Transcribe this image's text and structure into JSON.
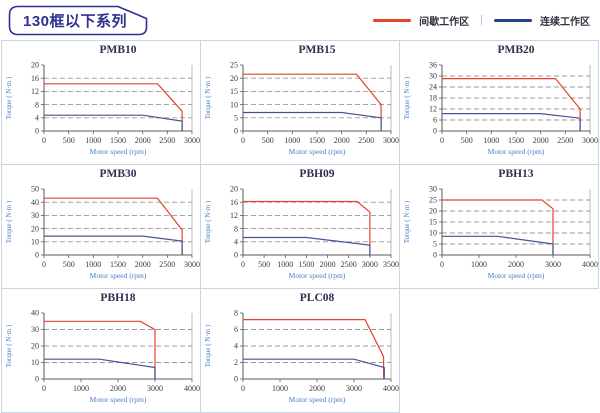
{
  "header": {
    "title": "130框以下系列",
    "legend_separator": "|",
    "legend": [
      {
        "key": "intermittent-zone",
        "label": "间歇工作区",
        "color": "#e2432a"
      },
      {
        "key": "continuous-zone",
        "label": "连续工作区",
        "color": "#24408e"
      }
    ]
  },
  "colors": {
    "header_navy": "#2e3192",
    "red_line": "#e2432a",
    "blue_line": "#46549b",
    "axis_label_blue": "#4a7cc7",
    "tick_text": "#3b3b3b",
    "grid": "#999999",
    "axis": "#5a5a5a",
    "plot_right_border": "#b4b4b4",
    "cell_border": "#ccd3e3"
  },
  "chart_data": [
    {
      "type": "line",
      "title": "PMB10",
      "xlabel": "Motor speed (rpm)",
      "ylabel": "Torque ( N·m )",
      "xlim": [
        0,
        3000
      ],
      "xticks": [
        0,
        500,
        1000,
        1500,
        2000,
        2500,
        3000
      ],
      "ylim": [
        0,
        20
      ],
      "yticks": [
        0,
        4,
        8,
        12,
        16,
        20
      ],
      "grid": "horizontal-dashed",
      "legend_position": "none",
      "series": [
        {
          "key": "intermittent-zone",
          "name": "间歇工作区",
          "color": "#e2432a",
          "points": [
            [
              0,
              14.3
            ],
            [
              2300,
              14.3
            ],
            [
              2800,
              6
            ],
            [
              2800,
              0
            ]
          ]
        },
        {
          "key": "continuous-zone",
          "name": "连续工作区",
          "color": "#46549b",
          "points": [
            [
              0,
              4.8
            ],
            [
              2000,
              4.8
            ],
            [
              2800,
              3
            ],
            [
              2800,
              0
            ]
          ]
        }
      ]
    },
    {
      "type": "line",
      "title": "PMB15",
      "xlabel": "Motor speed (rpm)",
      "ylabel": "Torque ( N·m )",
      "xlim": [
        0,
        3000
      ],
      "xticks": [
        0,
        500,
        1000,
        1500,
        2000,
        2500,
        3000
      ],
      "ylim": [
        0,
        25
      ],
      "yticks": [
        0,
        5,
        10,
        15,
        20,
        25
      ],
      "grid": "horizontal-dashed",
      "legend_position": "none",
      "series": [
        {
          "key": "intermittent-zone",
          "name": "间歇工作区",
          "color": "#e2432a",
          "points": [
            [
              0,
              21.5
            ],
            [
              2300,
              21.5
            ],
            [
              2800,
              10
            ],
            [
              2800,
              0
            ]
          ]
        },
        {
          "key": "continuous-zone",
          "name": "连续工作区",
          "color": "#46549b",
          "points": [
            [
              0,
              7
            ],
            [
              2000,
              7
            ],
            [
              2800,
              5
            ],
            [
              2800,
              0
            ]
          ]
        }
      ]
    },
    {
      "type": "line",
      "title": "PMB20",
      "xlabel": "Motor speed (rpm)",
      "ylabel": "Torque ( N·m )",
      "xlim": [
        0,
        3000
      ],
      "xticks": [
        0,
        500,
        1000,
        1500,
        2000,
        2500,
        3000
      ],
      "ylim": [
        0,
        36
      ],
      "yticks": [
        0,
        6,
        12,
        18,
        24,
        30,
        36
      ],
      "grid": "horizontal-dashed",
      "legend_position": "none",
      "series": [
        {
          "key": "intermittent-zone",
          "name": "间歇工作区",
          "color": "#e2432a",
          "points": [
            [
              0,
              28.6
            ],
            [
              2300,
              28.6
            ],
            [
              2800,
              12
            ],
            [
              2800,
              0
            ]
          ]
        },
        {
          "key": "continuous-zone",
          "name": "连续工作区",
          "color": "#46549b",
          "points": [
            [
              0,
              9.5
            ],
            [
              2000,
              9.5
            ],
            [
              2800,
              7
            ],
            [
              2800,
              0
            ]
          ]
        }
      ]
    },
    {
      "type": "line",
      "title": "PMB30",
      "xlabel": "Motor speed (rpm)",
      "ylabel": "Torque ( N·m )",
      "xlim": [
        0,
        3000
      ],
      "xticks": [
        0,
        500,
        1000,
        1500,
        2000,
        2500,
        3000
      ],
      "ylim": [
        0,
        50
      ],
      "yticks": [
        0,
        10,
        20,
        30,
        40,
        50
      ],
      "grid": "horizontal-dashed",
      "legend_position": "none",
      "series": [
        {
          "key": "intermittent-zone",
          "name": "间歇工作区",
          "color": "#e2432a",
          "points": [
            [
              0,
              43
            ],
            [
              2300,
              43
            ],
            [
              2800,
              19
            ],
            [
              2800,
              0
            ]
          ]
        },
        {
          "key": "continuous-zone",
          "name": "连续工作区",
          "color": "#46549b",
          "points": [
            [
              0,
              14.3
            ],
            [
              2000,
              14.3
            ],
            [
              2800,
              10.5
            ],
            [
              2800,
              0
            ]
          ]
        }
      ]
    },
    {
      "type": "line",
      "title": "PBH09",
      "xlabel": "Motor speed (rpm)",
      "ylabel": "Torque ( N·m )",
      "xlim": [
        0,
        3500
      ],
      "xticks": [
        0,
        500,
        1000,
        1500,
        2000,
        2500,
        3000,
        3500
      ],
      "ylim": [
        0,
        20
      ],
      "yticks": [
        0,
        4,
        8,
        12,
        16,
        20
      ],
      "grid": "horizontal-dashed",
      "legend_position": "none",
      "series": [
        {
          "key": "intermittent-zone",
          "name": "间歇工作区",
          "color": "#e2432a",
          "points": [
            [
              0,
              16.2
            ],
            [
              2700,
              16.2
            ],
            [
              3000,
              13
            ],
            [
              3000,
              0
            ]
          ]
        },
        {
          "key": "continuous-zone",
          "name": "连续工作区",
          "color": "#46549b",
          "points": [
            [
              0,
              5.3
            ],
            [
              1500,
              5.3
            ],
            [
              3000,
              3
            ],
            [
              3000,
              0
            ]
          ]
        }
      ]
    },
    {
      "type": "line",
      "title": "PBH13",
      "xlabel": "Motor speed (rpm)",
      "ylabel": "Torque ( N·m )",
      "xlim": [
        0,
        4000
      ],
      "xticks": [
        0,
        1000,
        2000,
        3000,
        4000
      ],
      "ylim": [
        0,
        30
      ],
      "yticks": [
        0,
        5,
        10,
        15,
        20,
        25,
        30
      ],
      "grid": "horizontal-dashed",
      "legend_position": "none",
      "series": [
        {
          "key": "intermittent-zone",
          "name": "间歇工作区",
          "color": "#e2432a",
          "points": [
            [
              0,
              25
            ],
            [
              2700,
              25
            ],
            [
              3000,
              21
            ],
            [
              3000,
              0
            ]
          ]
        },
        {
          "key": "continuous-zone",
          "name": "连续工作区",
          "color": "#46549b",
          "points": [
            [
              0,
              8.5
            ],
            [
              1500,
              8.5
            ],
            [
              3000,
              5
            ],
            [
              3000,
              0
            ]
          ]
        }
      ]
    },
    {
      "type": "line",
      "title": "PBH18",
      "xlabel": "Motor speed (rpm)",
      "ylabel": "Torque ( N·m )",
      "xlim": [
        0,
        4000
      ],
      "xticks": [
        0,
        1000,
        2000,
        3000,
        4000
      ],
      "ylim": [
        0,
        40
      ],
      "yticks": [
        0,
        10,
        20,
        30,
        40
      ],
      "grid": "horizontal-dashed",
      "legend_position": "none",
      "series": [
        {
          "key": "intermittent-zone",
          "name": "间歇工作区",
          "color": "#e2432a",
          "points": [
            [
              0,
              35
            ],
            [
              2600,
              35
            ],
            [
              3000,
              30
            ],
            [
              3000,
              0
            ]
          ]
        },
        {
          "key": "continuous-zone",
          "name": "连续工作区",
          "color": "#46549b",
          "points": [
            [
              0,
              12
            ],
            [
              1500,
              12
            ],
            [
              3000,
              7
            ],
            [
              3000,
              0
            ]
          ]
        }
      ]
    },
    {
      "type": "line",
      "title": "PLC08",
      "xlabel": "Motor speed (rpm)",
      "ylabel": "Torque ( N·m )",
      "xlim": [
        0,
        4000
      ],
      "xticks": [
        0,
        1000,
        2000,
        3000,
        4000
      ],
      "ylim": [
        0,
        8
      ],
      "yticks": [
        0,
        2,
        4,
        6,
        8
      ],
      "grid": "horizontal-dashed",
      "legend_position": "none",
      "series": [
        {
          "key": "intermittent-zone",
          "name": "间歇工作区",
          "color": "#e2432a",
          "points": [
            [
              0,
              7.2
            ],
            [
              3300,
              7.2
            ],
            [
              3800,
              2.7
            ],
            [
              3800,
              0
            ]
          ]
        },
        {
          "key": "continuous-zone",
          "name": "连续工作区",
          "color": "#46549b",
          "points": [
            [
              0,
              2.4
            ],
            [
              3000,
              2.4
            ],
            [
              3820,
              1.4
            ],
            [
              3820,
              0
            ]
          ]
        }
      ]
    }
  ]
}
